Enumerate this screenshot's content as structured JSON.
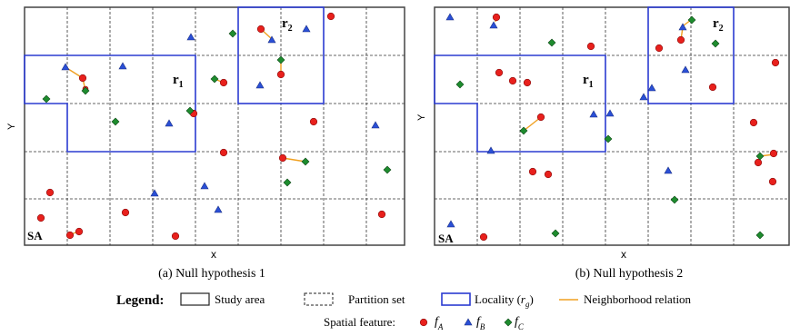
{
  "panels": [
    {
      "id": "a",
      "caption": "(a)  Null hypothesis 1",
      "x_axis_label": "x",
      "y_axis_label": "Y",
      "study_area_label": "SA",
      "localities": [
        {
          "label": "r",
          "subscript": "1"
        },
        {
          "label": "r",
          "subscript": "2"
        }
      ]
    },
    {
      "id": "b",
      "caption": "(b)  Null hypothesis 2",
      "x_axis_label": "x",
      "y_axis_label": "Y",
      "study_area_label": "SA",
      "localities": [
        {
          "label": "r",
          "subscript": "1"
        },
        {
          "label": "r",
          "subscript": "2"
        }
      ]
    }
  ],
  "legend": {
    "title": "Legend:",
    "study_area": "Study area",
    "partition_set": "Partition set",
    "locality_prefix": "Locality (",
    "locality_var": "r",
    "locality_sub": "g",
    "locality_suffix": ")",
    "neighborhood": "Neighborhood relation",
    "spatial_feature_title": "Spatial feature:",
    "features": [
      {
        "letter": "f",
        "sub": "A",
        "shape": "circle",
        "color": "#e8201c"
      },
      {
        "letter": "f",
        "sub": "B",
        "shape": "triangle",
        "color": "#2a4fd6"
      },
      {
        "letter": "f",
        "sub": "C",
        "shape": "diamond",
        "color": "#1e8c2e"
      }
    ]
  },
  "colors": {
    "locality": "#2b3bd1",
    "neighbor": "#f0a020",
    "grid": "#333333",
    "frame": "#444444"
  }
}
